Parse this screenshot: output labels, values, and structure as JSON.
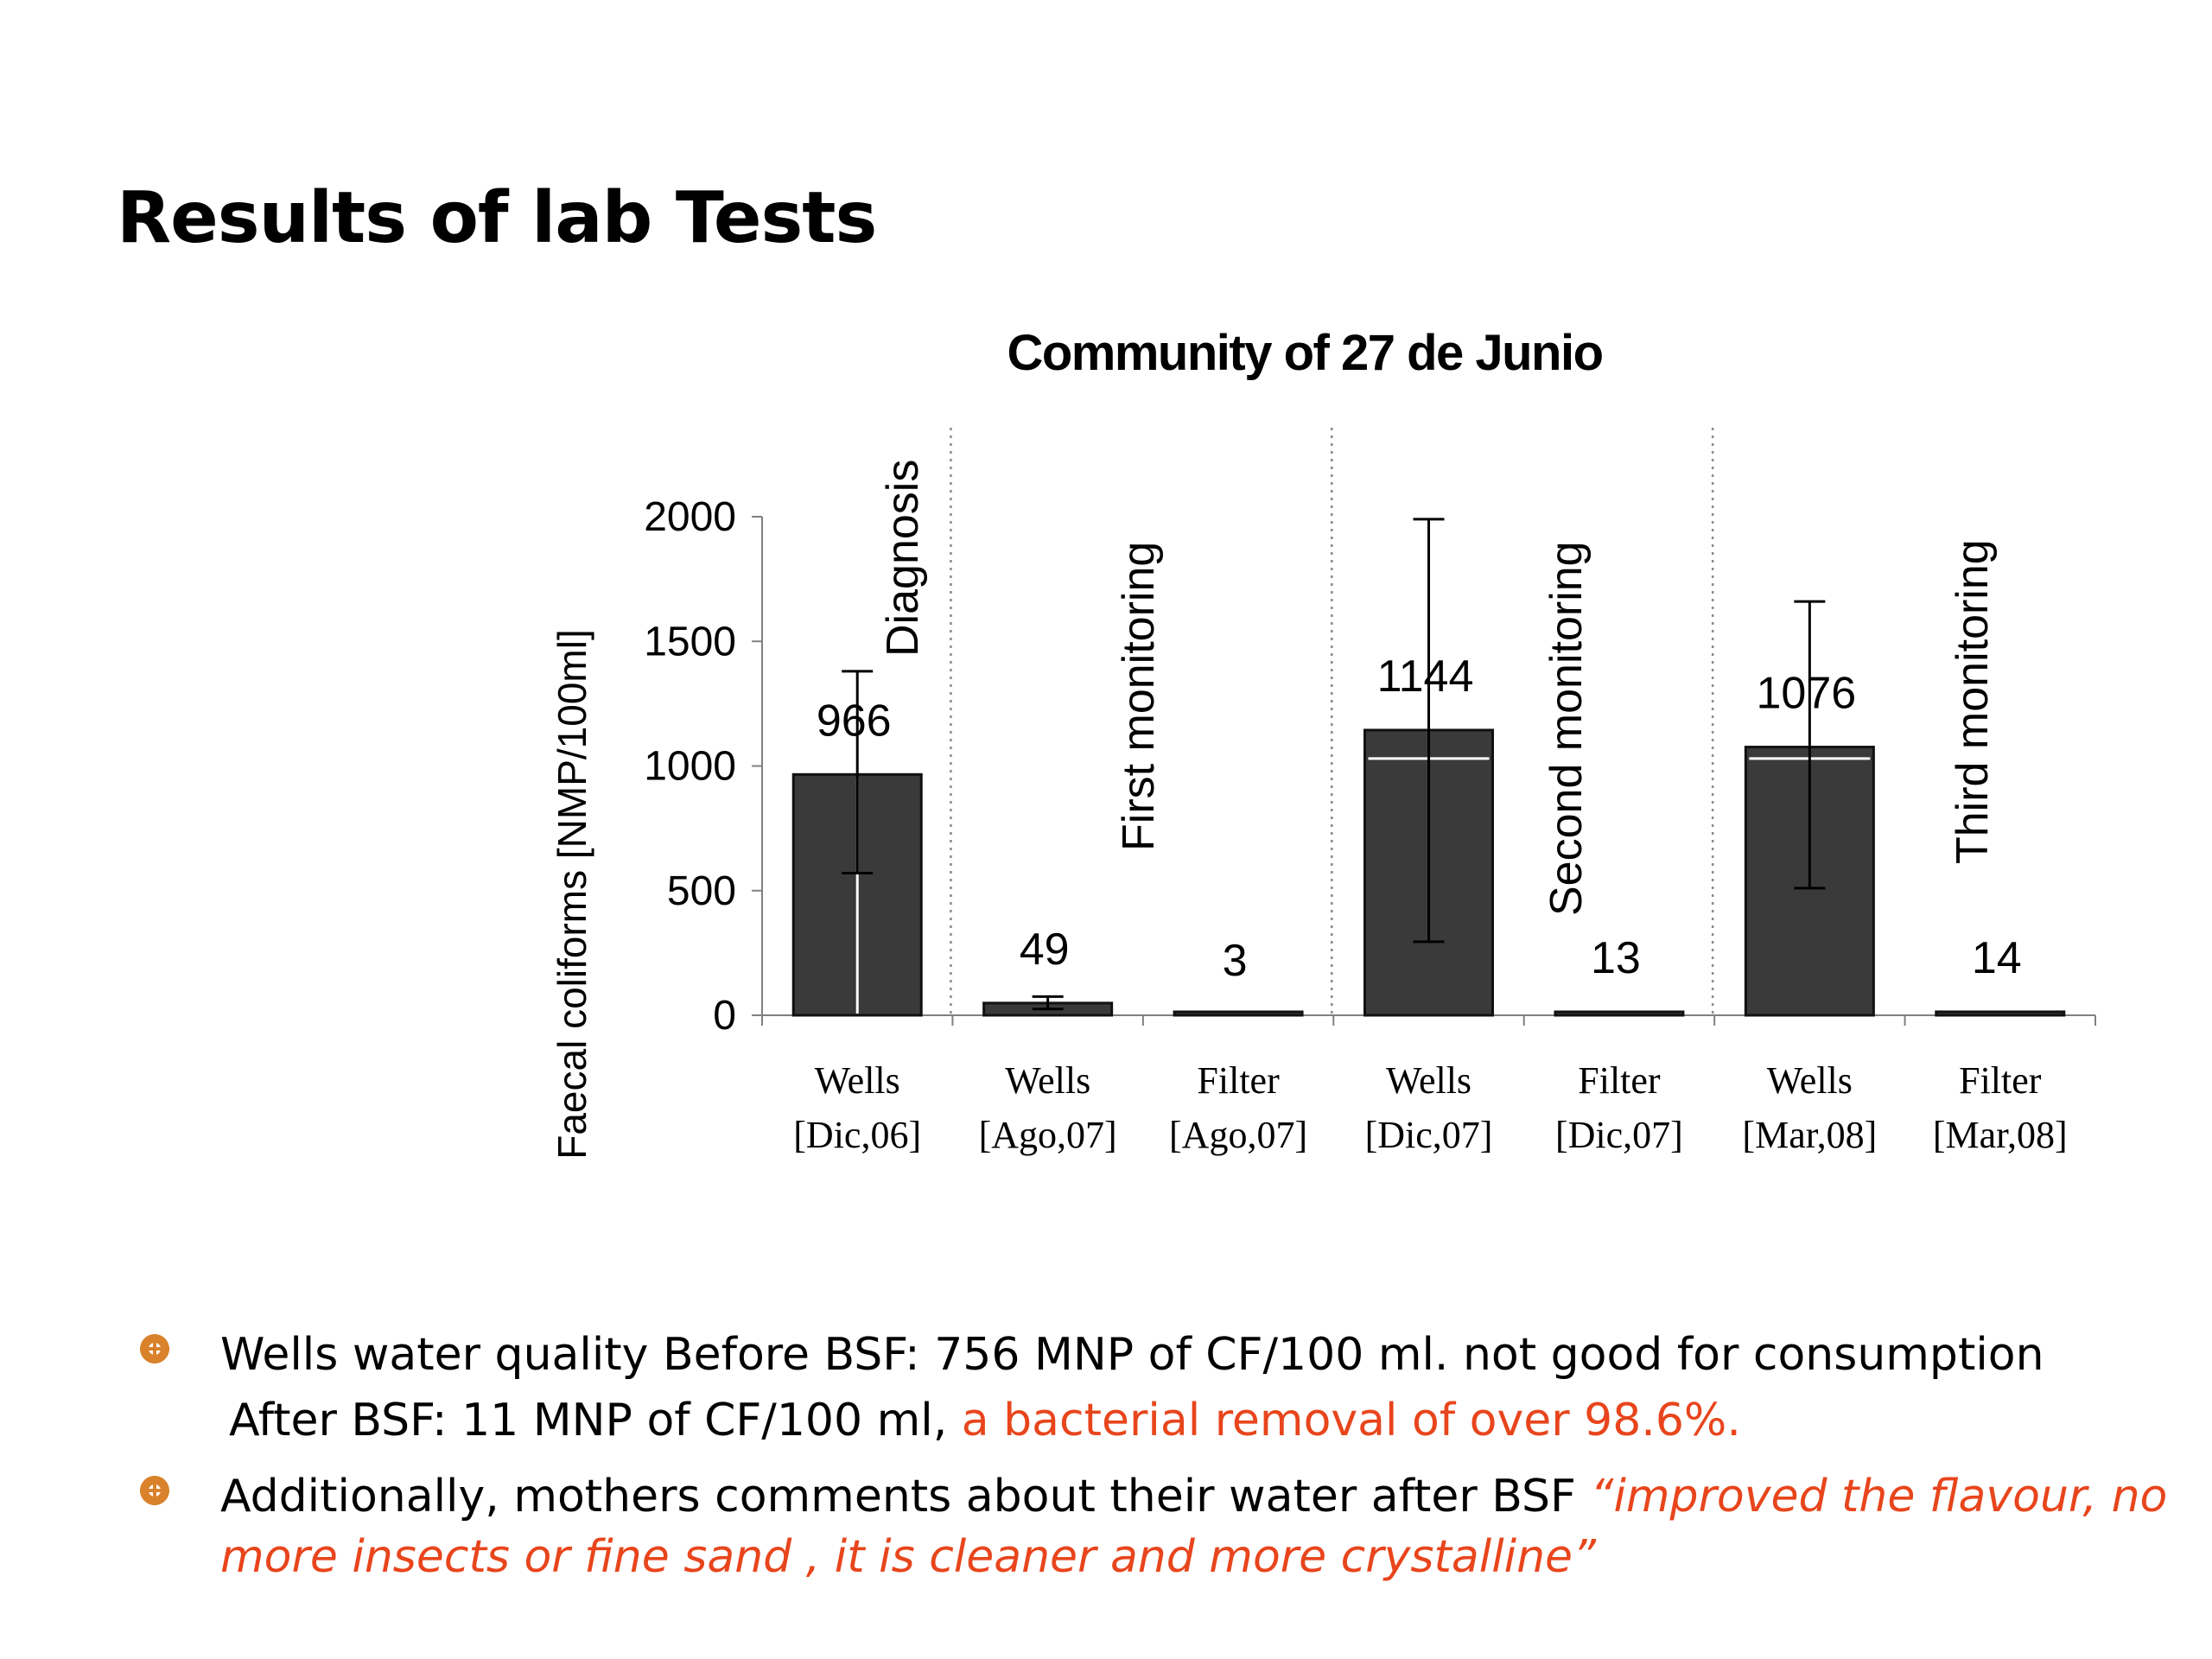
{
  "slide": {
    "title": "Results of lab Tests"
  },
  "chart_data": {
    "type": "bar",
    "title": "Community of 27 de Junio",
    "ylabel": "Faecal coliforms [NMP/100ml]",
    "xlabel": "",
    "ylim": [
      0,
      2000
    ],
    "yticks": [
      0,
      500,
      1000,
      1500,
      2000
    ],
    "grid": false,
    "legend": "none",
    "bar_color": "#3a3a3a",
    "categories": [
      {
        "line1": "Wells",
        "line2": "[Dic,06]"
      },
      {
        "line1": "Wells",
        "line2": "[Ago,07]"
      },
      {
        "line1": "Filter",
        "line2": "[Ago,07]"
      },
      {
        "line1": "Wells",
        "line2": "[Dic,07]"
      },
      {
        "line1": "Filter",
        "line2": "[Dic,07]"
      },
      {
        "line1": "Wells",
        "line2": "[Mar,08]"
      },
      {
        "line1": "Filter",
        "line2": "[Mar,08]"
      }
    ],
    "values": [
      966,
      49,
      3,
      1144,
      13,
      1076,
      14
    ],
    "data_labels": [
      "966",
      "49",
      "3",
      "1144",
      "13",
      "1076",
      "14"
    ],
    "error_bars": [
      {
        "low": 570,
        "high": 1380
      },
      {
        "low": 25,
        "high": 75
      },
      null,
      {
        "low": 295,
        "high": 1990
      },
      null,
      {
        "low": 510,
        "high": 1660
      },
      null
    ],
    "phases": [
      "Diagnosis",
      "First monitoring",
      "Second monitoring",
      "Third monitoring"
    ]
  },
  "bullets": [
    {
      "line1": "Wells water quality Before BSF: 756 MNP of CF/100 ml. not good for consumption",
      "line2_prefix": "After BSF: 11 MNP of CF/100 ml, ",
      "line2_highlight": "a bacterial removal of over 98.6%."
    },
    {
      "prefix": "Additionally, mothers comments about their water after BSF ",
      "quote_part1": "“improved the flavour, no",
      "quote_part2": "more insects or fine sand , it is cleaner and more crystalline”"
    }
  ],
  "colors": {
    "highlight": "#e8451c",
    "bullet_icon": "#d9822b"
  }
}
